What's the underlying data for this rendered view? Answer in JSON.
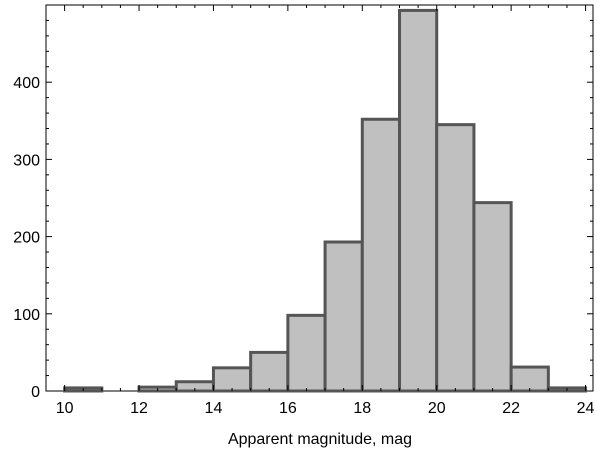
{
  "chart_data": {
    "type": "bar",
    "title": "",
    "xlabel": "Apparent magnitude, mag",
    "ylabel": "",
    "xlim": [
      9.5,
      24.2
    ],
    "ylim": [
      0,
      500
    ],
    "bin_width": 1,
    "bins": [
      {
        "x0": 10,
        "x1": 11,
        "value": 4
      },
      {
        "x0": 11,
        "x1": 12,
        "value": 0
      },
      {
        "x0": 12,
        "x1": 13,
        "value": 5
      },
      {
        "x0": 13,
        "x1": 14,
        "value": 12
      },
      {
        "x0": 14,
        "x1": 15,
        "value": 30
      },
      {
        "x0": 15,
        "x1": 16,
        "value": 50
      },
      {
        "x0": 16,
        "x1": 17,
        "value": 98
      },
      {
        "x0": 17,
        "x1": 18,
        "value": 193
      },
      {
        "x0": 18,
        "x1": 19,
        "value": 352
      },
      {
        "x0": 19,
        "x1": 20,
        "value": 493
      },
      {
        "x0": 20,
        "x1": 21,
        "value": 345
      },
      {
        "x0": 21,
        "x1": 22,
        "value": 244
      },
      {
        "x0": 22,
        "x1": 23,
        "value": 31
      },
      {
        "x0": 23,
        "x1": 24,
        "value": 4
      }
    ],
    "x_ticks": [
      10,
      12,
      14,
      16,
      18,
      20,
      22,
      24
    ],
    "y_ticks": [
      0,
      100,
      200,
      300,
      400
    ],
    "grid": false
  }
}
